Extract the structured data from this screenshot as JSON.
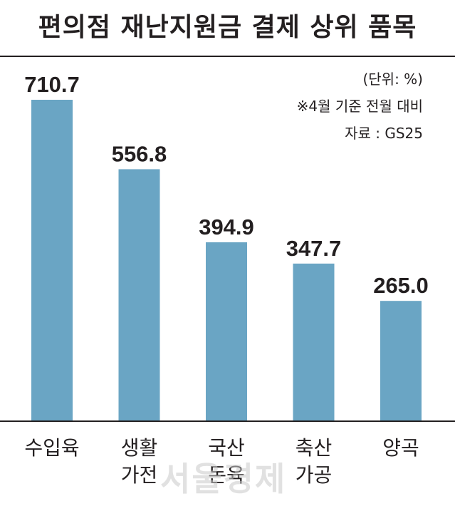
{
  "chart_data": {
    "type": "bar",
    "title": "편의점 재난지원금 결제 상위 품목",
    "unit_note": "(단위: %)",
    "basis_note": "※4월 기준 전월 대비",
    "source_note": "자료 : GS25",
    "categories": [
      "수입육",
      "생활\n가전",
      "국산\n돈육",
      "축산\n가공",
      "양곡"
    ],
    "values": [
      710.7,
      556.8,
      394.9,
      347.7,
      265.0
    ],
    "value_labels": [
      "710.7",
      "556.8",
      "394.9",
      "347.7",
      "265.0"
    ],
    "ylim": [
      0,
      710.7
    ],
    "bar_color": "#6aa5c4",
    "grid": false,
    "legend": "none"
  },
  "watermark": "서울경제"
}
